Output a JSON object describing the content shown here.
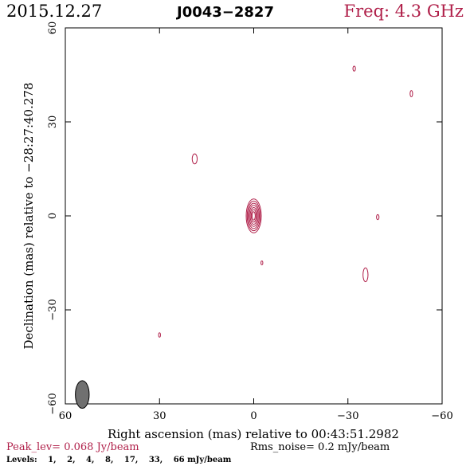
{
  "header": {
    "date": "2015.12.27",
    "source": "J0043−2827",
    "freq_label": "Freq: 4.3 GHz"
  },
  "colors": {
    "contour": "#b0204a",
    "axis": "#000000",
    "beam_fill": "#707070"
  },
  "chart_data": {
    "type": "contour",
    "xlabel": "Right ascension (mas) relative to 00:43:51.2982",
    "ylabel": "Declination (mas) relative to −28:27:40.278",
    "xlim": [
      60,
      -60
    ],
    "ylim": [
      -60,
      60
    ],
    "x_ticks": [
      60,
      30,
      0,
      -30,
      -60
    ],
    "x_tick_labels": [
      "60",
      "30",
      "0",
      "−30",
      "−60"
    ],
    "y_ticks": [
      -60,
      -30,
      0,
      30,
      60
    ],
    "y_tick_labels": [
      "−60",
      "−30",
      "0",
      "30",
      "60"
    ],
    "contour_levels_mjy": [
      1,
      2,
      4,
      8,
      17,
      33,
      66
    ],
    "components": [
      {
        "x": 0.0,
        "y": 0.0,
        "nlev": 7,
        "sx": 2.4,
        "sy": 5.4,
        "step_x": 0.32,
        "step_y": 0.68
      },
      {
        "x": 18.8,
        "y": 18.2,
        "nlev": 1,
        "sx": 0.8,
        "sy": 1.6
      },
      {
        "x": -32.0,
        "y": 47.0,
        "nlev": 1,
        "sx": 0.4,
        "sy": 0.8
      },
      {
        "x": -50.2,
        "y": 39.0,
        "nlev": 1,
        "sx": 0.4,
        "sy": 1.0
      },
      {
        "x": -39.5,
        "y": -0.4,
        "nlev": 1,
        "sx": 0.4,
        "sy": 0.8
      },
      {
        "x": -35.6,
        "y": -18.8,
        "nlev": 1,
        "sx": 0.8,
        "sy": 2.2
      },
      {
        "x": -2.6,
        "y": -15.0,
        "nlev": 1,
        "sx": 0.3,
        "sy": 0.6
      },
      {
        "x": 30.0,
        "y": -38.0,
        "nlev": 1,
        "sx": 0.3,
        "sy": 0.7
      }
    ],
    "beam": {
      "x": 54.6,
      "y": -57.0,
      "major": 4.4,
      "minor": 2.2
    }
  },
  "footer": {
    "peak_label": "Peak_lev=",
    "peak_value": "0.068 Jy/beam",
    "rms_label": "Rms_noise=",
    "rms_value": "0.2 mJy/beam",
    "levels_label": "Levels:",
    "levels": [
      "1,",
      "2,",
      "4,",
      "8,",
      "17,",
      "33,",
      "66 mJy/beam"
    ]
  }
}
